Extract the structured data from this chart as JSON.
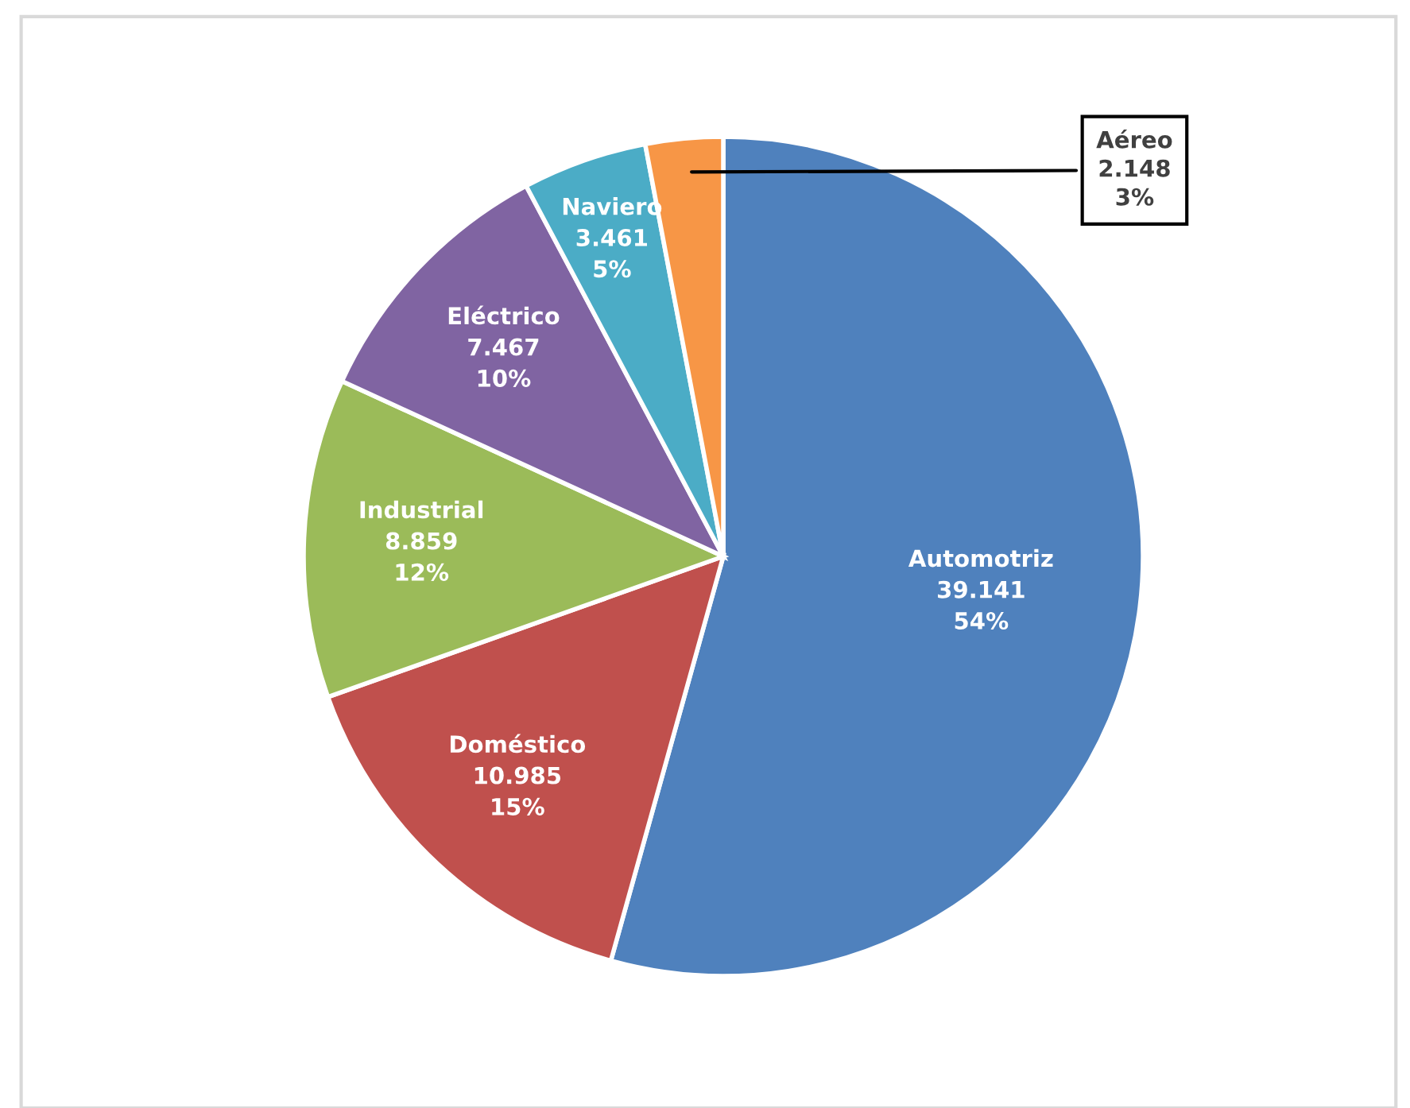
{
  "chart_data": {
    "type": "pie",
    "categories": [
      "Automotriz",
      "Doméstico",
      "Industrial",
      "Eléctrico",
      "Naviero",
      "Aéreo"
    ],
    "values": [
      39141,
      10985,
      8859,
      7467,
      3461,
      2148
    ],
    "colors": [
      "#4f81bd",
      "#c0504d",
      "#9bbb59",
      "#8064a2",
      "#4bacc6",
      "#f79646"
    ],
    "value_labels": [
      "39.141",
      "10.985",
      "8.859",
      "7.467",
      "3.461",
      "2.148"
    ],
    "annotations": [
      {
        "text": "54%",
        "x": "Automotriz"
      },
      {
        "text": "15%",
        "x": "Doméstico"
      },
      {
        "text": "12%",
        "x": "Industrial"
      },
      {
        "text": "10%",
        "x": "Eléctrico"
      },
      {
        "text": "5%",
        "x": "Naviero"
      },
      {
        "text": "3%",
        "x": "Aéreo"
      }
    ],
    "legend": false
  }
}
